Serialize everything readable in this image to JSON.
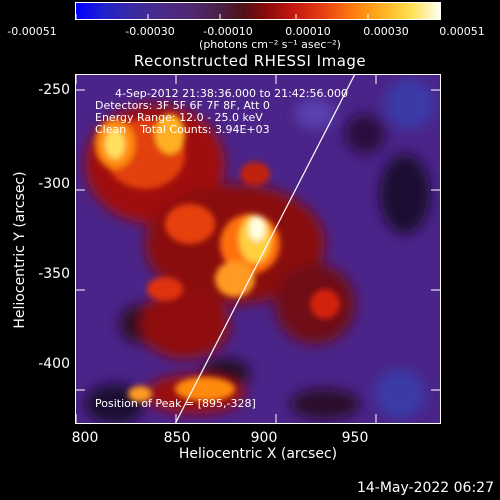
{
  "colorbar": {
    "ticks": [
      "-0.00051",
      "-0.00030",
      "-0.00010",
      "0.00010",
      "0.00030",
      "0.00051"
    ],
    "unit": "(photons cm⁻² s⁻¹ asec⁻²)"
  },
  "title": "Reconstructed RHESSI Image",
  "info": {
    "line1": "4-Sep-2012 21:38:36.000 to 21:42:56.000",
    "line2": "Detectors: 3F 5F 6F 7F 8F, Att 0",
    "line3": "Energy Range: 12.0 - 25.0 keV",
    "line4": "Clean    Total Counts: 3.94E+03",
    "peak": "Position of Peak = [895,-328]"
  },
  "axes": {
    "xlabel": "Heliocentric X (arcsec)",
    "ylabel": "Heliocentric Y (arcsec)",
    "xticks": [
      "800",
      "850",
      "900",
      "950"
    ],
    "yticks": [
      "-250",
      "-300",
      "-350",
      "-400"
    ]
  },
  "footer": "14-May-2022 06:27"
}
